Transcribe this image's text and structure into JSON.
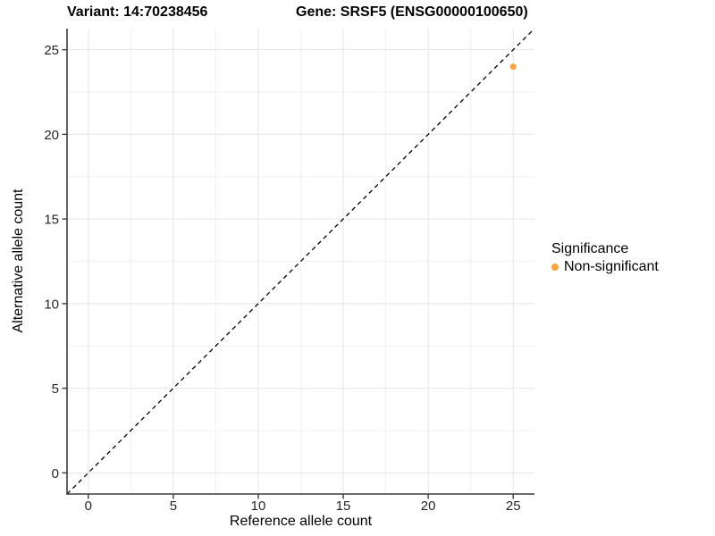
{
  "chart_data": {
    "type": "scatter",
    "title_left": "Variant: 14:70238456",
    "title_right": "Gene: SRSF5 (ENSG00000100650)",
    "xlabel": "Reference allele count",
    "ylabel": "Alternative allele count",
    "xlim": [
      -1.25,
      26.25
    ],
    "ylim": [
      -1.25,
      26.25
    ],
    "x_ticks": [
      0,
      5,
      10,
      15,
      20,
      25
    ],
    "y_ticks": [
      0,
      5,
      10,
      15,
      20,
      25
    ],
    "minor_grid_step": 2.5,
    "grid": true,
    "series": [
      {
        "name": "Non-significant",
        "color": "#FBA43C",
        "points": [
          {
            "x": 25,
            "y": 24
          }
        ]
      }
    ],
    "reference_line": {
      "type": "identity",
      "slope": 1,
      "intercept": 0,
      "style": "dashed",
      "color": "#000000"
    },
    "legend": {
      "title": "Significance",
      "position": "right",
      "entries": [
        {
          "label": "Non-significant",
          "color": "#FBA43C"
        }
      ]
    }
  },
  "style_colors": {
    "major_grid": "#E4E4E4",
    "minor_grid": "#F0F0F0",
    "axis_line": "#3C3C3C",
    "tick_text": "#262626",
    "background": "#FFFFFF"
  }
}
